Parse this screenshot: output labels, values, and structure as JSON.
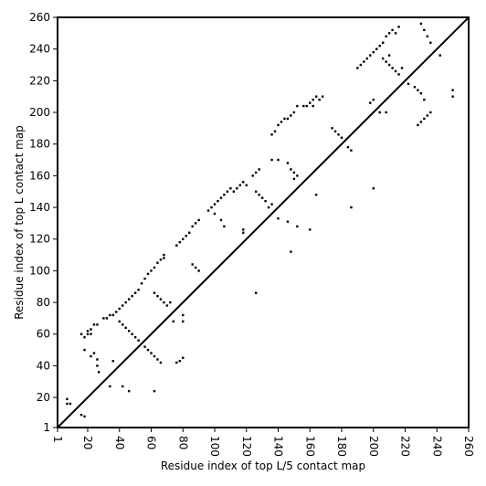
{
  "chart_data": {
    "type": "scatter",
    "title": "",
    "xlabel": "Residue index of top L/5 contact map",
    "ylabel": "Residue index of top L contact map",
    "xlim": [
      1,
      260
    ],
    "ylim": [
      1,
      260
    ],
    "xticks": [
      1,
      20,
      40,
      60,
      80,
      100,
      120,
      140,
      160,
      180,
      200,
      220,
      240,
      260
    ],
    "yticks": [
      1,
      20,
      40,
      60,
      80,
      100,
      120,
      140,
      160,
      180,
      200,
      220,
      240,
      260
    ],
    "diagonal": {
      "from": [
        1,
        1
      ],
      "to": [
        260,
        260
      ]
    },
    "grid": false,
    "legend": "none",
    "series": [
      {
        "values": [
          [
            7,
            19
          ],
          [
            7,
            16
          ],
          [
            9,
            16
          ],
          [
            16,
            9
          ],
          [
            18,
            8
          ],
          [
            16,
            60
          ],
          [
            18,
            58
          ],
          [
            20,
            60
          ],
          [
            20,
            62
          ],
          [
            22,
            63
          ],
          [
            24,
            66
          ],
          [
            22,
            60
          ],
          [
            26,
            66
          ],
          [
            24,
            48
          ],
          [
            26,
            44
          ],
          [
            26,
            40
          ],
          [
            27,
            36
          ],
          [
            18,
            50
          ],
          [
            22,
            46
          ],
          [
            30,
            70
          ],
          [
            32,
            70
          ],
          [
            34,
            72
          ],
          [
            36,
            72
          ],
          [
            38,
            74
          ],
          [
            40,
            76
          ],
          [
            42,
            78
          ],
          [
            44,
            80
          ],
          [
            46,
            82
          ],
          [
            48,
            84
          ],
          [
            50,
            86
          ],
          [
            52,
            88
          ],
          [
            54,
            92
          ],
          [
            56,
            95
          ],
          [
            58,
            98
          ],
          [
            60,
            100
          ],
          [
            62,
            102
          ],
          [
            64,
            105
          ],
          [
            66,
            107
          ],
          [
            68,
            110
          ],
          [
            68,
            108
          ],
          [
            40,
            68
          ],
          [
            42,
            66
          ],
          [
            44,
            64
          ],
          [
            46,
            62
          ],
          [
            48,
            60
          ],
          [
            50,
            58
          ],
          [
            52,
            56
          ],
          [
            34,
            27
          ],
          [
            42,
            27
          ],
          [
            46,
            24
          ],
          [
            36,
            43
          ],
          [
            56,
            52
          ],
          [
            58,
            50
          ],
          [
            60,
            48
          ],
          [
            62,
            46
          ],
          [
            64,
            44
          ],
          [
            66,
            42
          ],
          [
            62,
            86
          ],
          [
            64,
            84
          ],
          [
            66,
            82
          ],
          [
            68,
            80
          ],
          [
            70,
            78
          ],
          [
            72,
            80
          ],
          [
            62,
            24
          ],
          [
            80,
            45
          ],
          [
            78,
            43
          ],
          [
            76,
            42
          ],
          [
            80,
            72
          ],
          [
            80,
            68
          ],
          [
            74,
            68
          ],
          [
            76,
            116
          ],
          [
            78,
            118
          ],
          [
            80,
            120
          ],
          [
            82,
            122
          ],
          [
            84,
            124
          ],
          [
            86,
            128
          ],
          [
            88,
            130
          ],
          [
            90,
            132
          ],
          [
            86,
            104
          ],
          [
            88,
            102
          ],
          [
            90,
            100
          ],
          [
            96,
            138
          ],
          [
            98,
            140
          ],
          [
            100,
            142
          ],
          [
            102,
            144
          ],
          [
            104,
            146
          ],
          [
            106,
            148
          ],
          [
            108,
            150
          ],
          [
            110,
            152
          ],
          [
            112,
            150
          ],
          [
            114,
            152
          ],
          [
            116,
            154
          ],
          [
            118,
            156
          ],
          [
            120,
            154
          ],
          [
            100,
            136
          ],
          [
            104,
            132
          ],
          [
            106,
            128
          ],
          [
            118,
            126
          ],
          [
            118,
            124
          ],
          [
            124,
            160
          ],
          [
            126,
            162
          ],
          [
            128,
            164
          ],
          [
            126,
            150
          ],
          [
            128,
            148
          ],
          [
            130,
            146
          ],
          [
            132,
            144
          ],
          [
            134,
            140
          ],
          [
            136,
            142
          ],
          [
            126,
            86
          ],
          [
            136,
            186
          ],
          [
            138,
            188
          ],
          [
            140,
            192
          ],
          [
            142,
            194
          ],
          [
            144,
            196
          ],
          [
            146,
            196
          ],
          [
            148,
            198
          ],
          [
            150,
            200
          ],
          [
            152,
            204
          ],
          [
            150,
            158
          ],
          [
            152,
            160
          ],
          [
            136,
            170
          ],
          [
            140,
            170
          ],
          [
            146,
            168
          ],
          [
            148,
            164
          ],
          [
            150,
            162
          ],
          [
            140,
            133
          ],
          [
            146,
            131
          ],
          [
            152,
            128
          ],
          [
            148,
            112
          ],
          [
            160,
            126
          ],
          [
            164,
            148
          ],
          [
            158,
            204
          ],
          [
            160,
            206
          ],
          [
            162,
            208
          ],
          [
            164,
            210
          ],
          [
            166,
            208
          ],
          [
            168,
            210
          ],
          [
            156,
            204
          ],
          [
            162,
            204
          ],
          [
            174,
            190
          ],
          [
            176,
            188
          ],
          [
            178,
            186
          ],
          [
            180,
            184
          ],
          [
            184,
            178
          ],
          [
            186,
            176
          ],
          [
            186,
            140
          ],
          [
            190,
            228
          ],
          [
            192,
            230
          ],
          [
            194,
            232
          ],
          [
            196,
            234
          ],
          [
            198,
            236
          ],
          [
            200,
            238
          ],
          [
            202,
            240
          ],
          [
            204,
            242
          ],
          [
            206,
            244
          ],
          [
            208,
            248
          ],
          [
            210,
            250
          ],
          [
            212,
            252
          ],
          [
            214,
            250
          ],
          [
            216,
            254
          ],
          [
            198,
            206
          ],
          [
            200,
            208
          ],
          [
            204,
            200
          ],
          [
            208,
            200
          ],
          [
            200,
            152
          ],
          [
            206,
            234
          ],
          [
            208,
            232
          ],
          [
            210,
            230
          ],
          [
            212,
            228
          ],
          [
            214,
            226
          ],
          [
            216,
            224
          ],
          [
            218,
            228
          ],
          [
            210,
            236
          ],
          [
            222,
            218
          ],
          [
            226,
            216
          ],
          [
            228,
            214
          ],
          [
            230,
            212
          ],
          [
            232,
            208
          ],
          [
            228,
            192
          ],
          [
            230,
            194
          ],
          [
            232,
            196
          ],
          [
            234,
            198
          ],
          [
            236,
            200
          ],
          [
            230,
            256
          ],
          [
            232,
            252
          ],
          [
            234,
            248
          ],
          [
            236,
            244
          ],
          [
            242,
            236
          ],
          [
            250,
            214
          ],
          [
            250,
            210
          ]
        ]
      }
    ]
  }
}
